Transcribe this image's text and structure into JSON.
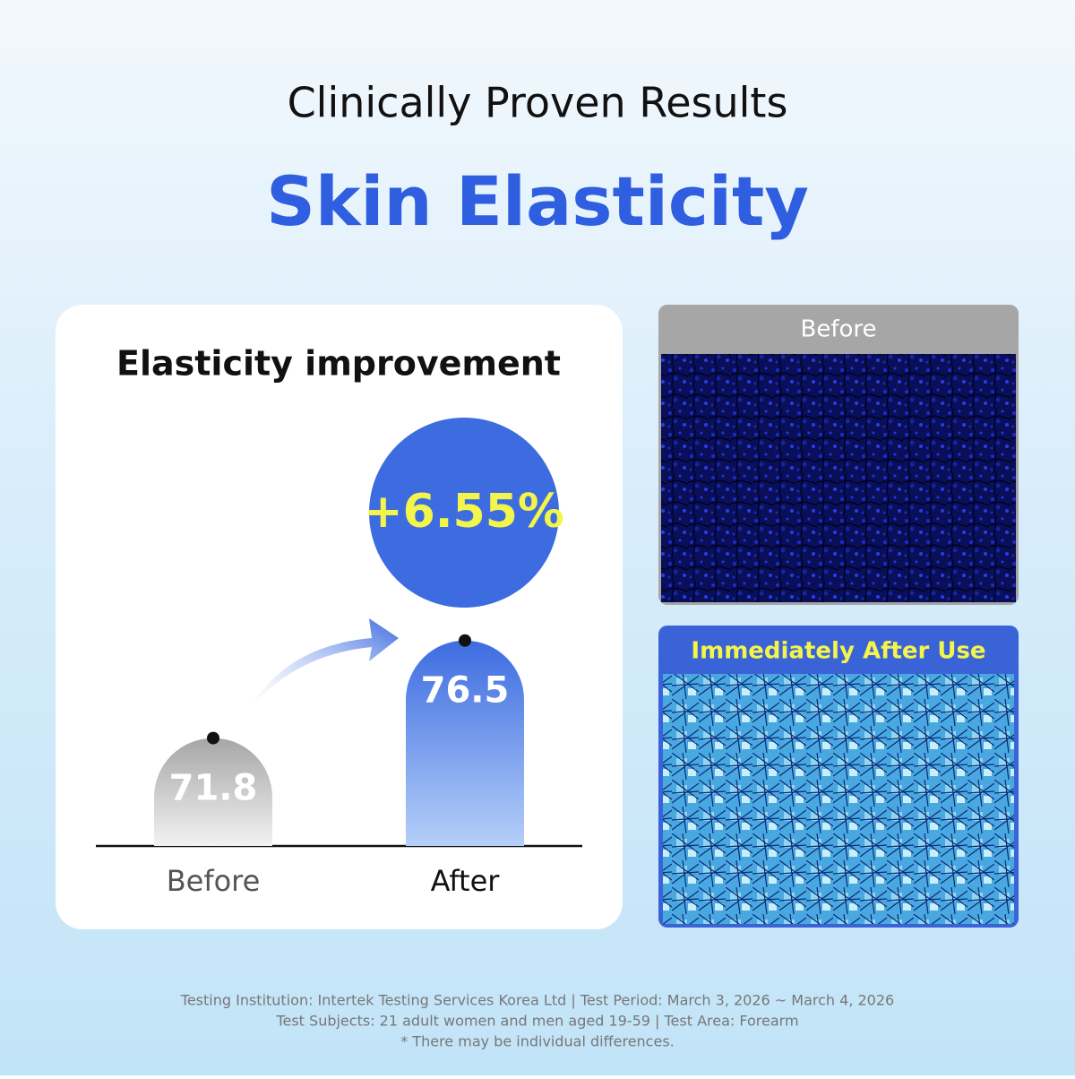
{
  "header": {
    "eyebrow": "Clinically Proven Results",
    "title": "Skin Elasticity"
  },
  "chart_data": {
    "type": "bar",
    "title": "Elasticity improvement",
    "categories": [
      "Before",
      "After"
    ],
    "values": [
      71.8,
      76.5
    ],
    "colors": [
      "#a8a8a8",
      "#3d6ce0"
    ],
    "ylim": [
      66.6,
      78
    ],
    "annotation": "+6.55%"
  },
  "panels": {
    "before": "Before",
    "after": "Immediately After Use"
  },
  "footer": [
    "Testing Institution: Intertek Testing Services Korea Ltd  |  Test Period: March 3, 2026 ~ March 4, 2026",
    "Test Subjects: 21 adult women and men aged 19-59  |  Test Area: Forearm",
    "* There may be individual differences."
  ]
}
